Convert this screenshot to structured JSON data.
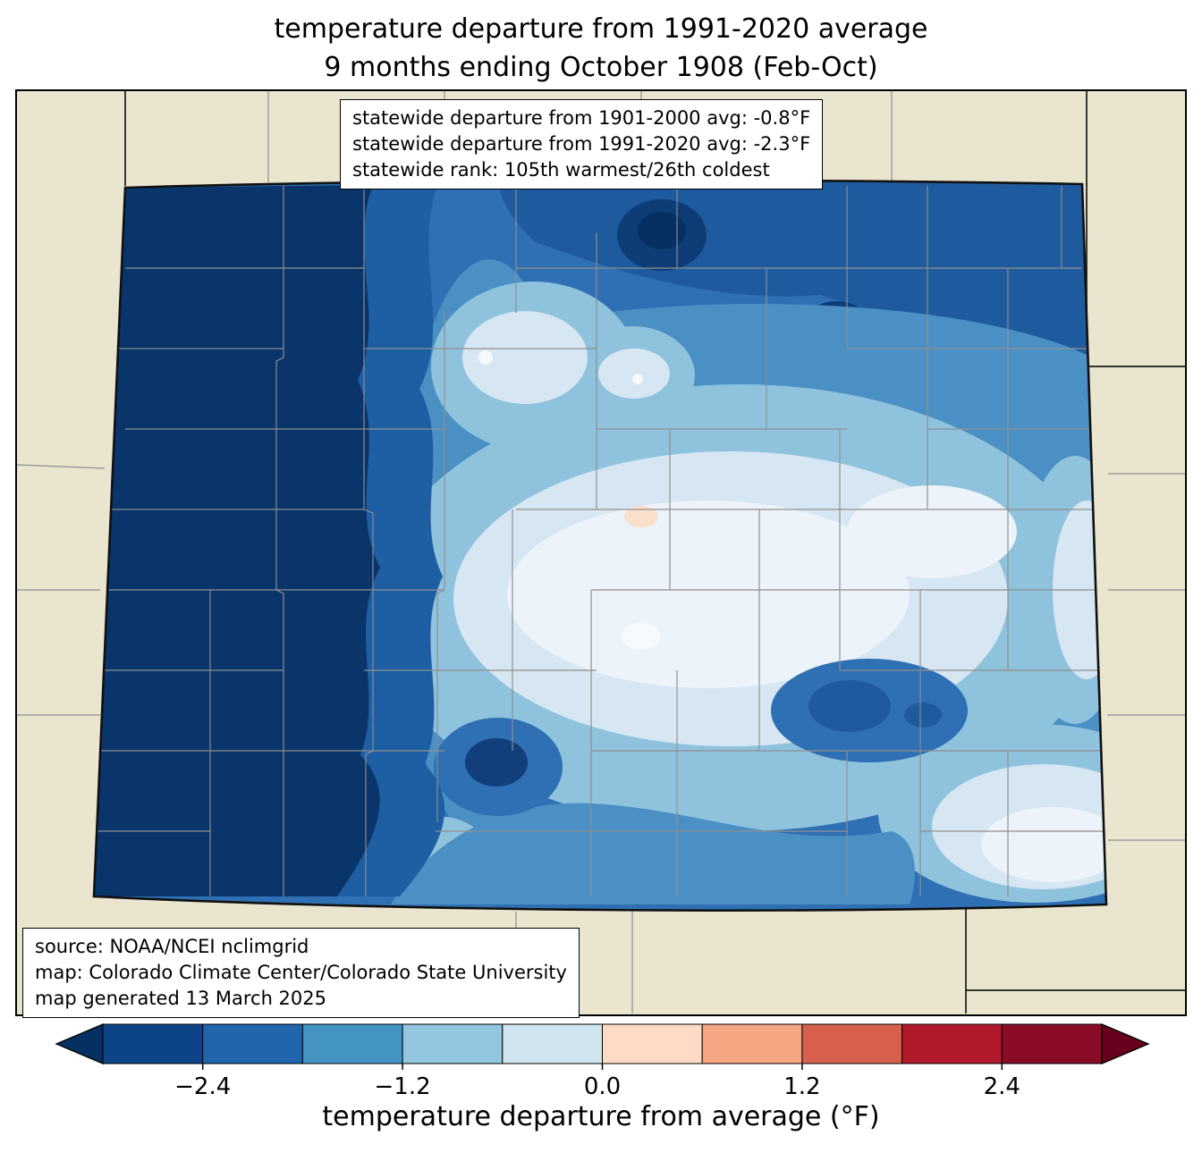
{
  "title": {
    "line1": "temperature departure from 1991-2020 average",
    "line2": "9 months ending October 1908 (Feb-Oct)"
  },
  "stats_box": {
    "line1": "statewide departure from 1901-2000 avg: -0.8°F",
    "line2": "statewide departure from 1991-2020 avg: -2.3°F",
    "line3": "statewide rank: 105th warmest/26th coldest"
  },
  "source_box": {
    "line1": "source: NOAA/NCEI nclimgrid",
    "line2": "map: Colorado Climate Center/Colorado State University",
    "line3": "map generated 13 March 2025"
  },
  "colorbar": {
    "label": "temperature departure from average (°F)",
    "range": [
      -3.0,
      3.0
    ],
    "ticks": [
      {
        "value": -2.4,
        "label": "−2.4"
      },
      {
        "value": -1.2,
        "label": "−1.2"
      },
      {
        "value": 0.0,
        "label": "0.0"
      },
      {
        "value": 1.2,
        "label": "1.2"
      },
      {
        "value": 2.4,
        "label": "2.4"
      }
    ],
    "segment_colors": [
      "#0d4488",
      "#2166ac",
      "#4393c3",
      "#92c5de",
      "#d1e5f0",
      "#fddbc7",
      "#f4a582",
      "#d6604d",
      "#b2182b",
      "#8a0b25"
    ],
    "under_color": "#053061",
    "over_color": "#67001f"
  },
  "chart_data": {
    "type": "heatmap",
    "subtype": "choropleth-contour-map",
    "region": "Colorado (with county boundaries), neighboring states in beige",
    "variable": "temperature departure from 1991-2020 average (°F)",
    "period": "9 months ending October 1908 (Feb-Oct)",
    "statewide_departure_1901_2000_avg_F": -0.8,
    "statewide_departure_1991_2020_avg_F": -2.3,
    "statewide_rank": "105th warmest/26th coldest",
    "scale_range_F": [
      -3.0,
      3.0
    ],
    "scale_step_F": 0.6,
    "pattern": "entire western third colder than -3.0°F (darkest navy); values increase eastward through -2.4 to -0.6°F bands; near-zero pale region in central/east-central Colorado with one small slightly-positive (0 to 0.6°F) pocket near the center; dark cold blobs along the northern border and in the south-central and southeastern areas; southeast corner near -0.6°F"
  }
}
